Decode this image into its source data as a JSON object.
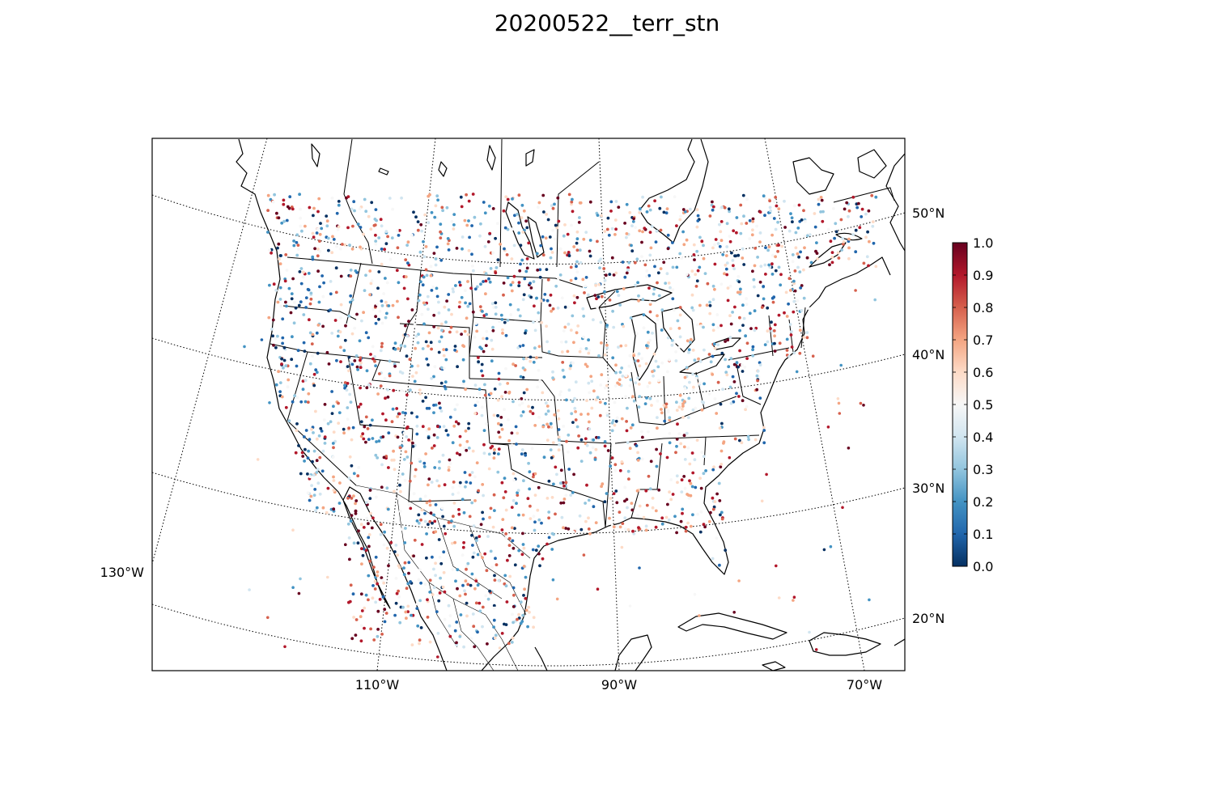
{
  "title": "20200522__terr_stn",
  "map": {
    "projection": "lambert-conformal",
    "lat_labels": [
      "50°N",
      "40°N",
      "30°N",
      "20°N"
    ],
    "lon_labels": [
      "130°W",
      "110°W",
      "90°W",
      "70°W"
    ],
    "gridlines": "dotted",
    "marker": "small filled circles",
    "colormap": "RdBu_r (0 = dark blue, 0.5 = white, 1 = dark red)"
  },
  "colorbar": {
    "min": 0.0,
    "max": 1.0,
    "ticks": [
      "1.0",
      "0.9",
      "0.8",
      "0.7",
      "0.6",
      "0.5",
      "0.4",
      "0.3",
      "0.2",
      "0.1",
      "0.0"
    ],
    "colors": [
      "#053061",
      "#2166ac",
      "#4393c3",
      "#92c5de",
      "#d1e5f0",
      "#f7f7f7",
      "#fddbc7",
      "#f4a582",
      "#d6604d",
      "#b2182b",
      "#67001f"
    ]
  }
}
